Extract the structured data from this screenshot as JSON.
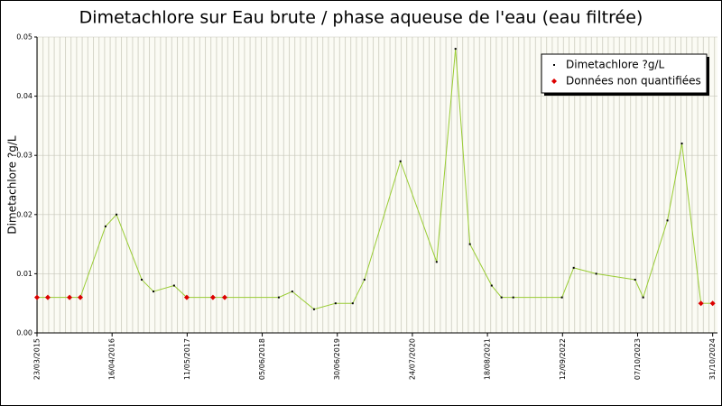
{
  "chart_data": {
    "type": "line",
    "title": "Dimetachlore sur Eau brute / phase aqueuse de l'eau (eau filtrée)",
    "y_label": "Dimetachlore ?g/L",
    "x": [
      "23/03/2015",
      "18/05/2015",
      "08/09/2015",
      "03/11/2015",
      "13/03/2016",
      "09/05/2016",
      "17/09/2016",
      "17/11/2016",
      "04/03/2017",
      "09/05/2017",
      "22/09/2017",
      "22/11/2017",
      "30/08/2018",
      "08/11/2018",
      "01/03/2019",
      "21/06/2019",
      "18/09/2019",
      "18/11/2019",
      "23/05/2020",
      "27/11/2020",
      "05/03/2021",
      "19/05/2021",
      "09/09/2021",
      "30/10/2021",
      "30/12/2021",
      "09/09/2022",
      "09/11/2022",
      "06/03/2023",
      "24/09/2023",
      "05/11/2023",
      "10/03/2024",
      "24/05/2024",
      "31/08/2024",
      "31/10/2024"
    ],
    "series": [
      {
        "name": "Dimetachlore ?g/L",
        "color": "#000000",
        "values": [
          null,
          null,
          null,
          null,
          0.018,
          0.02,
          0.009,
          0.007,
          0.008,
          null,
          null,
          null,
          0.006,
          0.007,
          0.004,
          0.005,
          0.005,
          0.009,
          0.029,
          0.012,
          0.048,
          0.015,
          0.008,
          0.006,
          0.006,
          0.006,
          0.011,
          0.01,
          0.009,
          0.006,
          0.019,
          0.032,
          null,
          null
        ]
      },
      {
        "name": "Données non quantifiées",
        "color": "#dd0000",
        "values": [
          0.006,
          0.006,
          0.006,
          0.006,
          null,
          null,
          null,
          null,
          null,
          0.006,
          0.006,
          0.006,
          null,
          null,
          null,
          null,
          null,
          null,
          null,
          null,
          null,
          null,
          null,
          null,
          null,
          null,
          null,
          null,
          null,
          null,
          null,
          null,
          0.005,
          0.005
        ]
      }
    ],
    "line_color": "#99cc33",
    "xlim": [
      "23/03/2015",
      "25/11/2024"
    ],
    "xticks": [
      "23/03/2015",
      "16/04/2016",
      "11/05/2017",
      "05/06/2018",
      "30/06/2019",
      "24/07/2020",
      "18/08/2021",
      "12/09/2022",
      "07/10/2023",
      "31/10/2024"
    ],
    "ylim": [
      0,
      0.05
    ],
    "yticks": [
      {
        "value": 0,
        "label": "0.00"
      },
      0.01,
      0.02,
      0.03,
      0.04,
      0.05
    ],
    "grid": true,
    "legend": "top-right"
  }
}
